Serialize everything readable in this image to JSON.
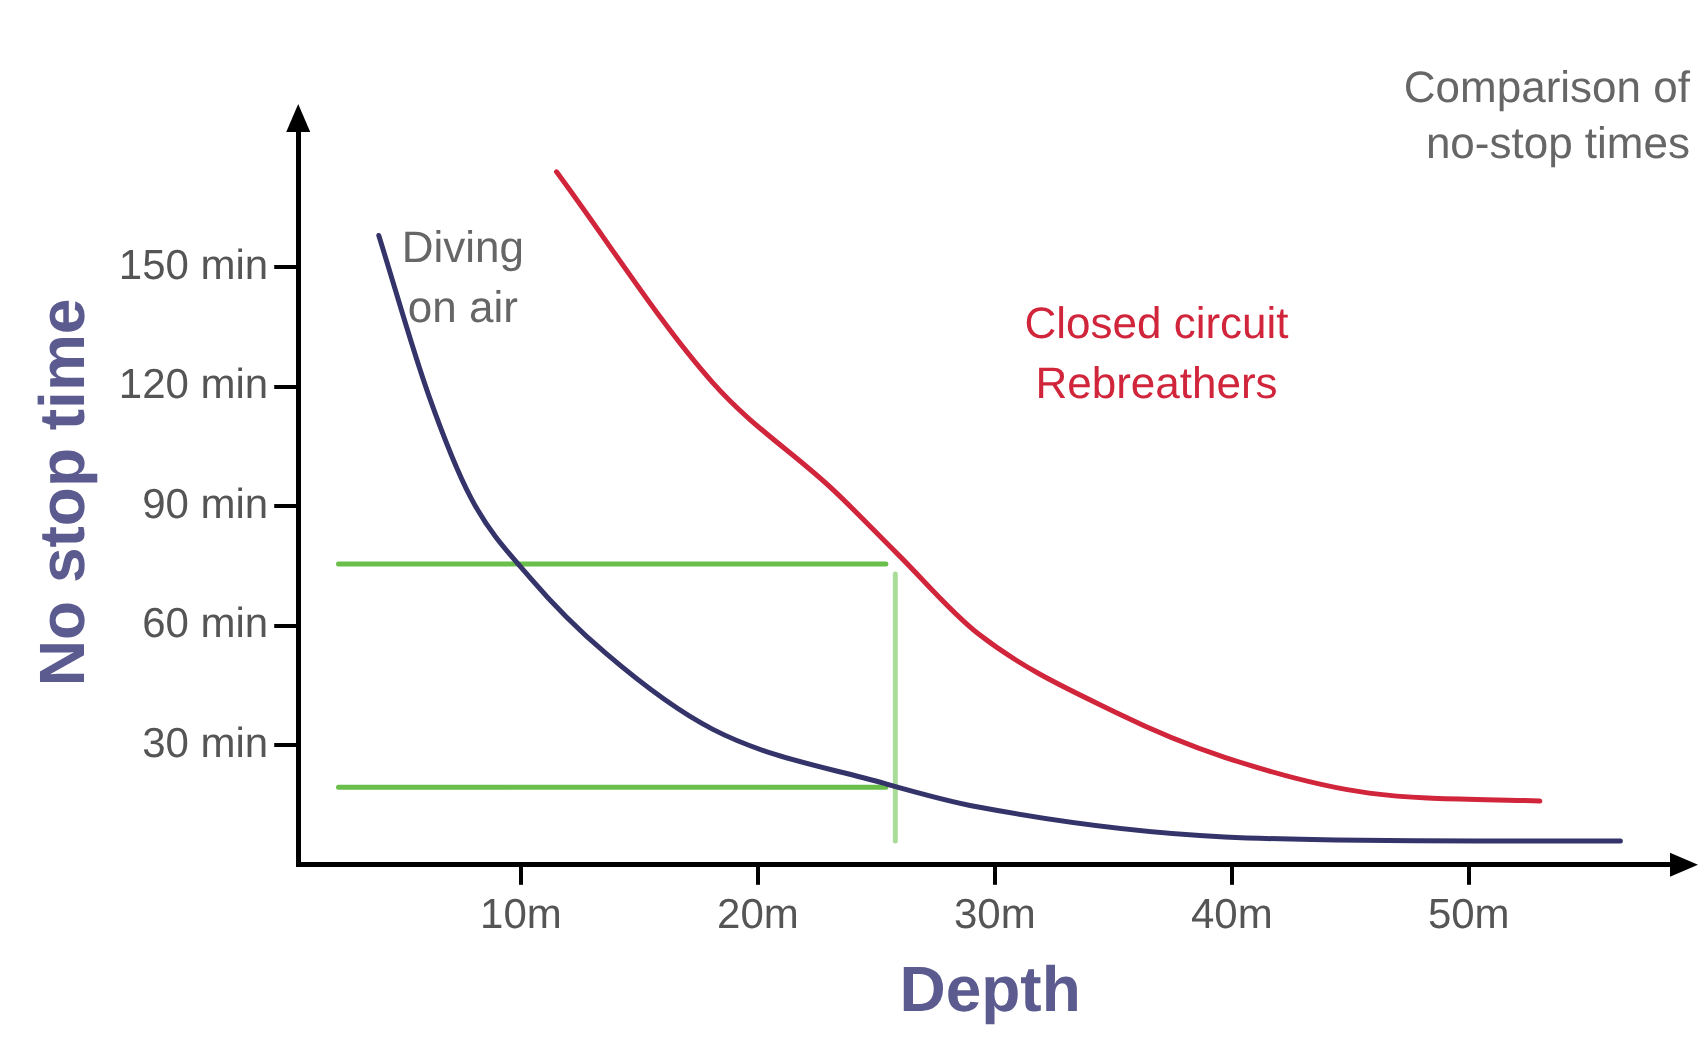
{
  "chart_data": {
    "type": "line",
    "title": "Comparison of no-stop times",
    "xlabel": "Depth",
    "ylabel": "No stop time",
    "xlim": [
      0.6,
      59
    ],
    "ylim": [
      0,
      187
    ],
    "xticks": [
      {
        "value": 10,
        "label": "10m"
      },
      {
        "value": 20,
        "label": "20m"
      },
      {
        "value": 30,
        "label": "30m"
      },
      {
        "value": 40,
        "label": "40m"
      },
      {
        "value": 50,
        "label": "50m"
      }
    ],
    "yticks": [
      {
        "value": 30,
        "label": "30 min"
      },
      {
        "value": 60,
        "label": "60 min"
      },
      {
        "value": 90,
        "label": "90 min"
      },
      {
        "value": 120,
        "label": "120 min"
      },
      {
        "value": 150,
        "label": "150 min"
      }
    ],
    "grid": false,
    "legend": false,
    "marker": "none",
    "line_style": "solid",
    "series": [
      {
        "name": "Diving on air",
        "color": "#35346a",
        "x": [
          4.0,
          6.1,
          7.9,
          10.4,
          13.6,
          18.1,
          25.3,
          29.3,
          39.7,
          50.3,
          56.4
        ],
        "values": [
          158,
          118,
          92,
          72,
          53,
          34,
          20.5,
          14.5,
          7,
          6,
          6
        ]
      },
      {
        "name": "Closed circuit Rebreathers",
        "color": "#d0253a",
        "x": [
          11.5,
          18.1,
          23.2,
          25.9,
          29.3,
          35.2,
          39.7,
          45.8,
          53
        ],
        "values": [
          174,
          121,
          94,
          78,
          58,
          38,
          27,
          18,
          16
        ]
      },
      {
        "color": "#6abf4b",
        "x": [
          2.3,
          25.4
        ],
        "values": [
          75.5,
          75.5
        ]
      },
      {
        "color": "#6abf4b",
        "x": [
          2.3,
          25.4
        ],
        "values": [
          19.5,
          19.5
        ]
      },
      {
        "color": "#a8dc98",
        "x": [
          25.8,
          25.8
        ],
        "values": [
          73,
          6
        ]
      }
    ]
  }
}
